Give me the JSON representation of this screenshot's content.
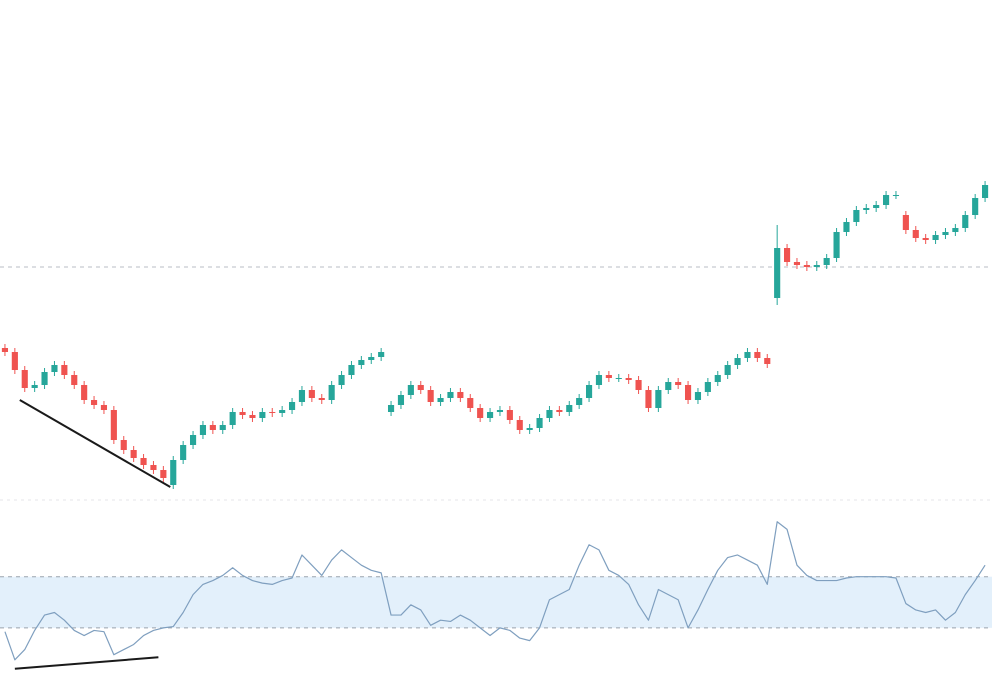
{
  "chart_data": [
    {
      "type": "candlestick",
      "up_color": "#26a69a",
      "down_color": "#ef5350",
      "xlim": [
        -0.5,
        99.7
      ],
      "ylim": [
        0,
        500
      ],
      "levels": [
        233
      ],
      "level_color": "#b8bcc4",
      "trendlines": [
        {
          "x": [
            1.5,
            16.7
          ],
          "y": [
            100,
            13
          ],
          "color": "#1a1a1a"
        }
      ],
      "open": [
        152,
        148,
        130,
        112,
        115,
        128,
        135,
        125,
        115,
        100,
        95,
        90,
        60,
        50,
        42,
        35,
        30,
        15,
        40,
        55,
        65,
        75,
        70,
        75,
        88,
        85,
        82,
        88,
        87,
        90,
        98,
        110,
        102,
        100,
        115,
        125,
        135,
        140,
        143,
        88,
        95,
        105,
        115,
        110,
        98,
        102,
        108,
        102,
        92,
        82,
        88,
        90,
        80,
        70,
        72,
        82,
        90,
        88,
        95,
        102,
        115,
        125,
        122,
        122,
        120,
        110,
        92,
        110,
        118,
        115,
        100,
        108,
        118,
        125,
        135,
        142,
        148,
        142,
        202,
        252,
        238,
        235,
        233,
        235,
        242,
        268,
        278,
        290,
        292,
        295,
        305,
        285,
        270,
        262,
        260,
        265,
        268,
        272,
        285,
        302
      ],
      "high": [
        156,
        152,
        134,
        119,
        132,
        139,
        139,
        129,
        119,
        104,
        99,
        94,
        64,
        54,
        46,
        39,
        34,
        44,
        59,
        69,
        79,
        79,
        79,
        92,
        92,
        89,
        92,
        92,
        94,
        102,
        114,
        114,
        106,
        119,
        129,
        139,
        144,
        147,
        152,
        99,
        109,
        119,
        119,
        114,
        106,
        112,
        112,
        106,
        96,
        92,
        94,
        94,
        84,
        76,
        86,
        94,
        94,
        99,
        106,
        119,
        129,
        129,
        126,
        126,
        124,
        114,
        114,
        122,
        122,
        119,
        112,
        122,
        129,
        139,
        146,
        152,
        152,
        146,
        275,
        256,
        242,
        239,
        239,
        246,
        272,
        282,
        294,
        296,
        299,
        309,
        309,
        289,
        274,
        266,
        269,
        272,
        276,
        289,
        306,
        319
      ],
      "low": [
        144,
        126,
        108,
        108,
        111,
        124,
        121,
        111,
        96,
        91,
        86,
        56,
        46,
        38,
        31,
        26,
        18,
        11,
        36,
        51,
        61,
        66,
        66,
        71,
        81,
        78,
        78,
        83,
        83,
        86,
        94,
        98,
        96,
        96,
        111,
        121,
        131,
        136,
        139,
        84,
        91,
        101,
        106,
        94,
        94,
        98,
        98,
        88,
        78,
        78,
        84,
        76,
        66,
        66,
        68,
        78,
        84,
        84,
        91,
        98,
        111,
        118,
        118,
        116,
        106,
        88,
        88,
        106,
        111,
        96,
        96,
        104,
        114,
        121,
        131,
        138,
        138,
        132,
        195,
        234,
        231,
        229,
        229,
        231,
        238,
        264,
        274,
        286,
        288,
        291,
        301,
        266,
        258,
        256,
        256,
        261,
        264,
        268,
        281,
        298
      ],
      "close": [
        148,
        130,
        112,
        115,
        128,
        135,
        125,
        115,
        100,
        95,
        90,
        60,
        50,
        42,
        35,
        30,
        22,
        40,
        55,
        65,
        75,
        70,
        75,
        88,
        85,
        82,
        88,
        87,
        90,
        98,
        110,
        102,
        100,
        115,
        125,
        135,
        140,
        143,
        148,
        95,
        105,
        115,
        110,
        98,
        102,
        108,
        102,
        92,
        82,
        88,
        90,
        80,
        70,
        72,
        82,
        90,
        88,
        95,
        102,
        115,
        125,
        122,
        122,
        120,
        110,
        92,
        110,
        118,
        115,
        100,
        108,
        118,
        125,
        135,
        142,
        148,
        142,
        136,
        252,
        238,
        235,
        233,
        235,
        242,
        268,
        278,
        290,
        292,
        295,
        305,
        305,
        270,
        262,
        260,
        265,
        268,
        272,
        285,
        302,
        315
      ]
    },
    {
      "type": "line",
      "color": "#7f9fbf",
      "xlim": [
        -0.5,
        99.7
      ],
      "ylim": [
        -10,
        130
      ],
      "levels": [
        70,
        30
      ],
      "level_color": "#9aa3ad",
      "band_color": "#e3f0fb",
      "trendlines": [
        {
          "x": [
            1,
            15.5
          ],
          "y": [
            -2,
            7
          ],
          "color": "#1a1a1a"
        }
      ],
      "values": [
        27,
        5,
        13,
        28,
        40,
        42,
        36,
        28,
        24,
        28,
        27,
        9,
        13,
        17,
        24,
        28,
        30,
        31,
        42,
        56,
        64,
        67,
        71,
        77,
        71,
        67,
        65,
        64,
        67,
        69,
        87,
        79,
        71,
        83,
        91,
        85,
        79,
        75,
        73,
        40,
        40,
        48,
        44,
        32,
        36,
        35,
        40,
        36,
        30,
        24,
        30,
        28,
        22,
        20,
        30,
        52,
        56,
        60,
        79,
        95,
        91,
        75,
        71,
        64,
        48,
        36,
        60,
        56,
        52,
        30,
        44,
        60,
        75,
        85,
        87,
        83,
        79,
        64,
        113,
        107,
        79,
        71,
        67,
        67,
        67,
        69,
        70,
        70,
        70,
        70,
        69,
        49,
        44,
        42,
        44,
        36,
        42,
        56,
        67,
        79
      ]
    }
  ]
}
